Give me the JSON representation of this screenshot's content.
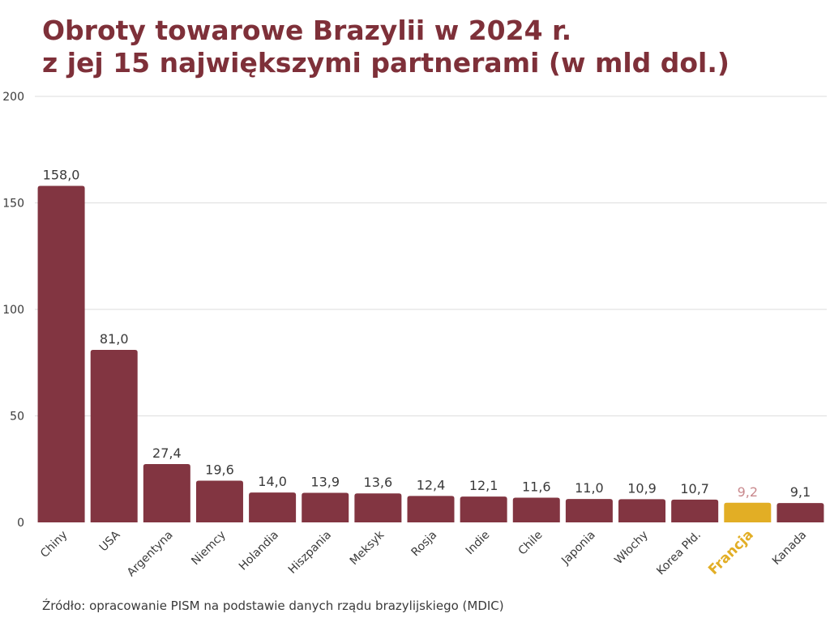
{
  "title_line1": "Obroty towarowe Brazylii w 2024 r.",
  "title_line2": "z jej 15 największymi partnerami (w mld dol.)",
  "source": "Źródło: opracowanie PISM na podstawie danych rządu brazylijskiego (MDIC)",
  "colors": {
    "bar": "#823541",
    "highlight": "#e2ae25",
    "highlight_value_label": "#c9898d",
    "title": "#7e3039",
    "grid": "#dedede",
    "text": "#3a3a3a"
  },
  "chart_data": {
    "type": "bar",
    "title": "Obroty towarowe Brazylii w 2024 r. z jej 15 największymi partnerami (w mld dol.)",
    "xlabel": "",
    "ylabel": "",
    "ylim": [
      0,
      200
    ],
    "yticks": [
      0,
      50,
      100,
      150,
      200
    ],
    "grid": true,
    "legend": "none",
    "categories": [
      "Chiny",
      "USA",
      "Argentyna",
      "Niemcy",
      "Holandia",
      "Hiszpania",
      "Meksyk",
      "Rosja",
      "Indie",
      "Chile",
      "Japonia",
      "Włochy",
      "Korea Płd.",
      "Francja",
      "Kanada"
    ],
    "values": [
      158.0,
      81.0,
      27.4,
      19.6,
      14.0,
      13.9,
      13.6,
      12.4,
      12.1,
      11.6,
      11.0,
      10.9,
      10.7,
      9.2,
      9.1
    ],
    "value_labels": [
      "158,0",
      "81,0",
      "27,4",
      "19,6",
      "14,0",
      "13,9",
      "13,6",
      "12,4",
      "12,1",
      "11,6",
      "11,0",
      "10,9",
      "10,7",
      "9,2",
      "9,1"
    ],
    "highlighted_category": "Francja"
  }
}
